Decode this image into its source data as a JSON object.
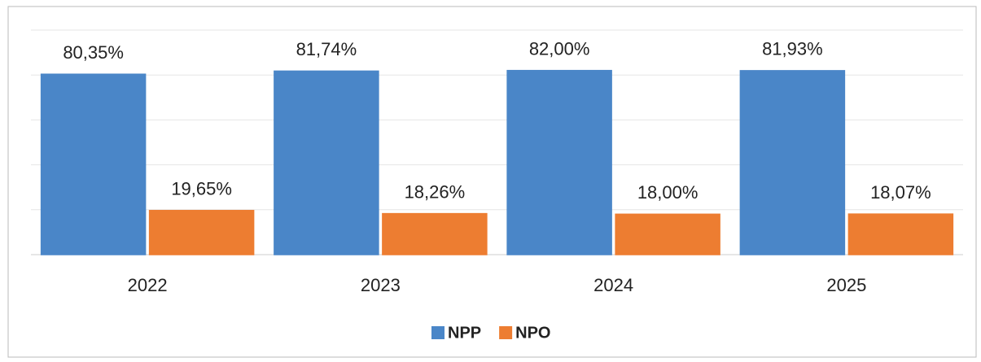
{
  "chart_data": {
    "type": "bar",
    "categories": [
      "2022",
      "2023",
      "2024",
      "2025"
    ],
    "series": [
      {
        "name": "NPP",
        "color": "#4a86c8",
        "values": [
          80.35,
          81.74,
          82.0,
          81.93
        ],
        "value_labels": [
          "80,35%",
          "81,74%",
          "82,00%",
          "81,93%"
        ]
      },
      {
        "name": "NPO",
        "color": "#ed7d31",
        "values": [
          19.65,
          18.26,
          18.0,
          18.07
        ],
        "value_labels": [
          "19,65%",
          "18,26%",
          "18,00%",
          "18,07%"
        ]
      }
    ],
    "ylim": [
      0,
      100
    ],
    "yticks": [
      0,
      20,
      40,
      60,
      80,
      100
    ],
    "grid": true,
    "legend": "bottom"
  }
}
